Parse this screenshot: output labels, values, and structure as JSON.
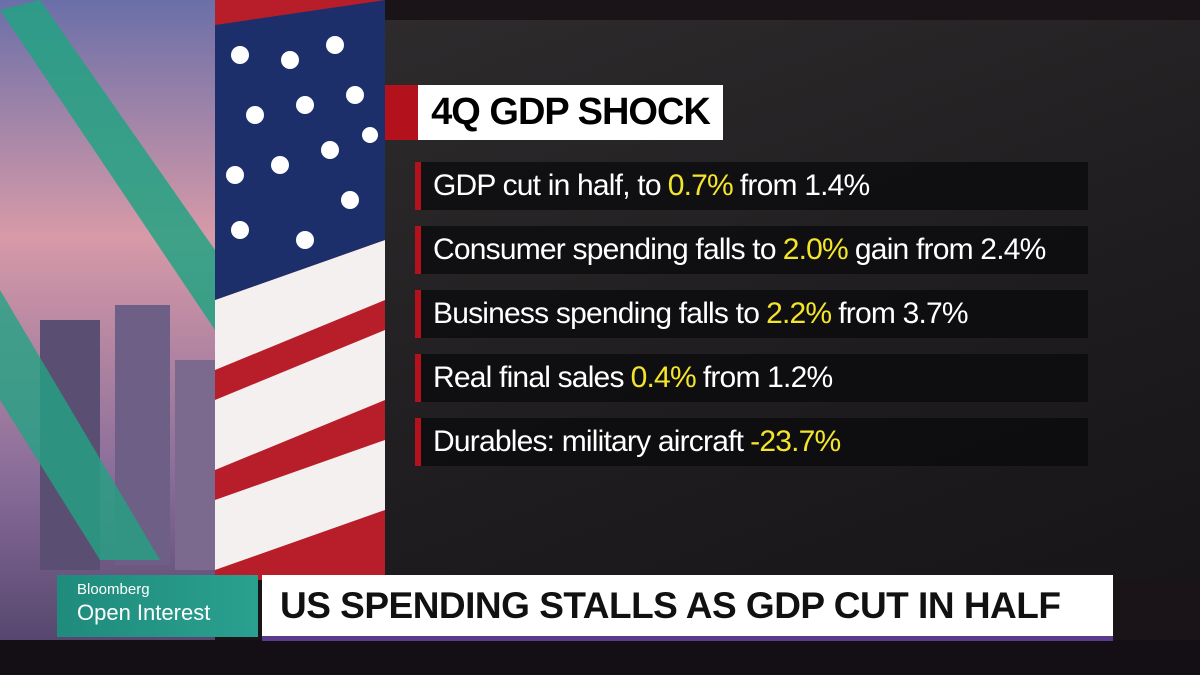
{
  "header": {
    "title": "4Q GDP SHOCK"
  },
  "rows": [
    {
      "text": "GDP cut in half, to",
      "figure": "0.7%",
      "after": "from 1.4%"
    },
    {
      "text": "Consumer spending falls to",
      "figure": "2.0%",
      "after": "gain from 2.4%"
    },
    {
      "text": "Business spending falls to",
      "figure": "2.2%",
      "after": "from 3.7%"
    },
    {
      "text": "Real final sales",
      "figure": "0.4%",
      "after": "from 1.2%"
    },
    {
      "text": "Durables: military aircraft",
      "figure": "-23.7%"
    }
  ],
  "show": {
    "network": "Bloomberg",
    "program": "Open Interest"
  },
  "headline": "US SPENDING STALLS AS GDP CUT IN HALF"
}
